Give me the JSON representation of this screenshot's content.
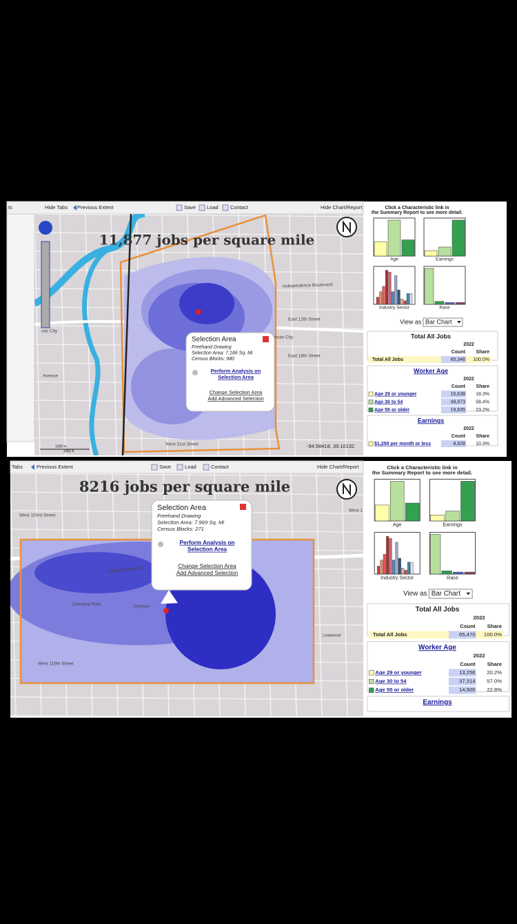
{
  "panels": [
    {
      "toolbar": {
        "left": "ts",
        "tabs": "Hide Tabs",
        "extent": "Previous Extent",
        "save": "Save",
        "load": "Load",
        "contact": "Contact",
        "chart": "Hide Chart/Report"
      },
      "map_title": "11,877 jobs per square mile",
      "popup": {
        "title": "Selection Area",
        "lines": [
          "Freehand Drawing",
          "Selection Area: 7.186 Sq. Mi",
          "Census Blocks: 980"
        ],
        "action": [
          "Perform Analysis on",
          "Selection Area"
        ],
        "links": [
          "Change Selection Area",
          "Add Advanced Selection"
        ]
      },
      "coords": "-94.58418, 39.10132",
      "scale": [
        "1000 m",
        "3000 ft"
      ],
      "map_labels": [
        "Independence Boulevard",
        "East 12th Street",
        "East 18th Street",
        "ansas City",
        "West 31st Street",
        "sas City",
        "Avenue"
      ],
      "side": {
        "instruction": [
          "Click a Characteristic link in",
          "the Summary Report to see more detail."
        ],
        "charts": [
          "Age",
          "Earnings",
          "Industry Sector",
          "Race"
        ],
        "view_as": "View as",
        "select": "Bar Chart",
        "total": {
          "title": "Total All Jobs",
          "year": "2022",
          "cols": [
            "Count",
            "Share"
          ],
          "rows": [
            [
              "Total All Jobs",
              "85,346",
              "100.0%"
            ]
          ]
        },
        "age": {
          "title": "Worker Age",
          "year": "2022",
          "cols": [
            "Count",
            "Share"
          ],
          "rows": [
            [
              "Age 29 or younger",
              "15,638",
              "18.3%"
            ],
            [
              "Age 30 to 54",
              "49,873",
              "58.4%"
            ],
            [
              "Age 55 or older",
              "19,835",
              "23.2%"
            ]
          ]
        },
        "earnings": {
          "title": "Earnings",
          "year": "2022",
          "cols": [
            "Count",
            "Share"
          ],
          "rows": [
            [
              "$1,250 per month or less",
              "8,828",
              "10.3%"
            ]
          ]
        }
      }
    },
    {
      "toolbar": {
        "left": "Tabs",
        "extent": "Previous Extent",
        "save": "Save",
        "load": "Load",
        "contact": "Contact",
        "chart": "Hide Chart/Report"
      },
      "map_title": "8216 jobs per square mile",
      "popup": {
        "title": "Selection Area",
        "lines": [
          "Freehand Drawing",
          "Selection Area: 7.969 Sq. Mi",
          "Census Blocks: 271"
        ],
        "action": [
          "Perform Analysis on",
          "Selection Area"
        ],
        "links": [
          "Change Selection Area",
          "Add Advanced Selection"
        ]
      },
      "map_labels": [
        "West 103rd Street",
        "Overland Park",
        "Johnson",
        "Leawood",
        "West 119th Street",
        "College Boulevard",
        "West 1"
      ],
      "side": {
        "instruction": [
          "Click a Characteristic link in",
          "the Summary Report to see more detail."
        ],
        "charts": [
          "Age",
          "Earnings",
          "Industry Sector",
          "Race"
        ],
        "view_as": "View as",
        "select": "Bar Chart",
        "total": {
          "title": "Total All Jobs",
          "year": "2022",
          "cols": [
            "Count",
            "Share"
          ],
          "rows": [
            [
              "Total All Jobs",
              "65,470",
              "100.0%"
            ]
          ]
        },
        "age": {
          "title": "Worker Age",
          "year": "2022",
          "cols": [
            "Count",
            "Share"
          ],
          "rows": [
            [
              "Age 29 or younger",
              "13,256",
              "20.2%"
            ],
            [
              "Age 30 to 54",
              "37,314",
              "57.0%"
            ],
            [
              "Age 55 or older",
              "14,900",
              "22.8%"
            ]
          ]
        },
        "earnings": {
          "title": "Earnings"
        }
      }
    }
  ]
}
